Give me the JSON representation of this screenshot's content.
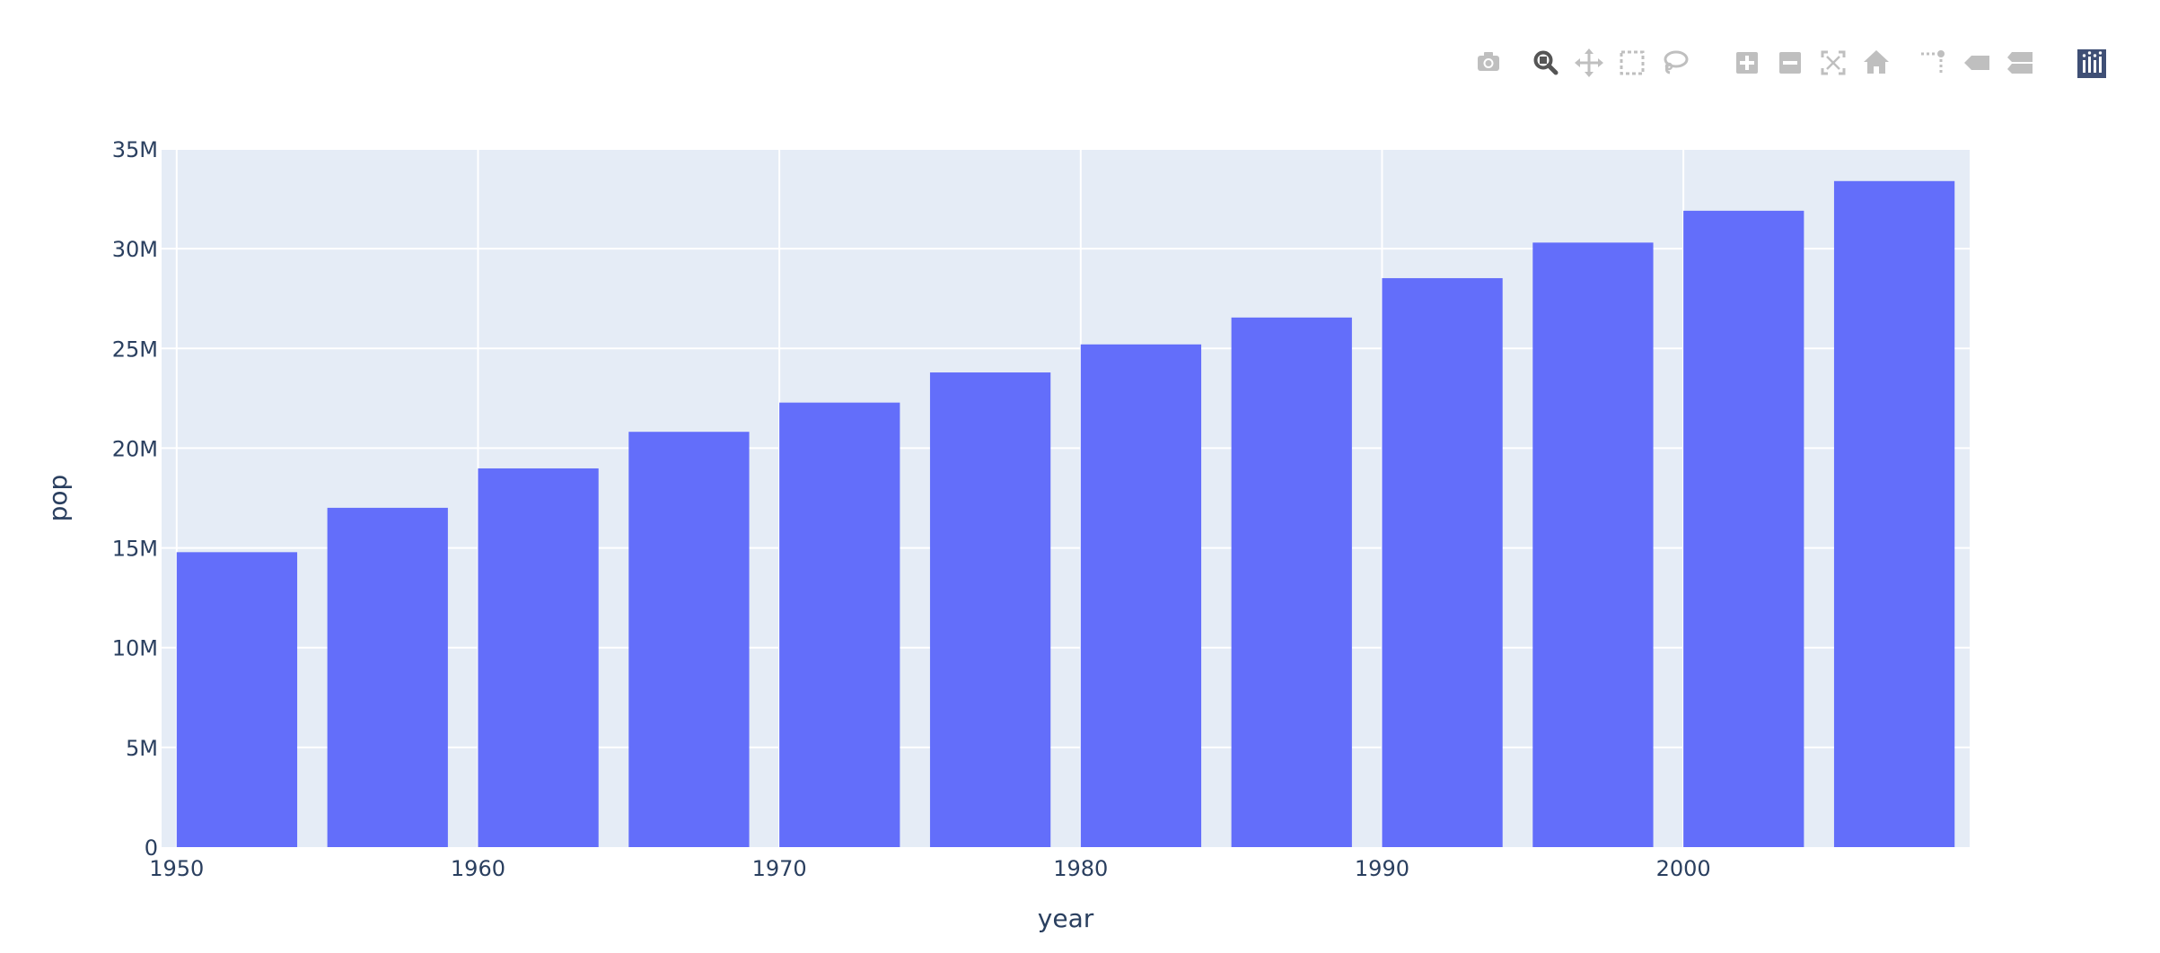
{
  "modebar": {
    "buttons": [
      {
        "name": "camera-icon",
        "title": "Download plot as a png",
        "active": false
      },
      {
        "name": "zoom-icon",
        "title": "Zoom",
        "active": true
      },
      {
        "name": "pan-icon",
        "title": "Pan",
        "active": false
      },
      {
        "name": "box-select-icon",
        "title": "Box Select",
        "active": false
      },
      {
        "name": "lasso-select-icon",
        "title": "Lasso Select",
        "active": false
      },
      {
        "name": "zoom-in-icon",
        "title": "Zoom in",
        "active": false
      },
      {
        "name": "zoom-out-icon",
        "title": "Zoom out",
        "active": false
      },
      {
        "name": "autoscale-icon",
        "title": "Autoscale",
        "active": false
      },
      {
        "name": "reset-axes-icon",
        "title": "Reset axes",
        "active": false
      },
      {
        "name": "spike-lines-icon",
        "title": "Toggle Spike Lines",
        "active": false
      },
      {
        "name": "hover-closest-icon",
        "title": "Show closest data on hover",
        "active": false
      },
      {
        "name": "hover-compare-icon",
        "title": "Compare data on hover",
        "active": false
      },
      {
        "name": "plotly-logo-icon",
        "title": "Produced with Plotly",
        "active": false
      }
    ]
  },
  "colors": {
    "bar": "#636efa",
    "plot_bg": "#e5ecf6",
    "grid": "#ffffff",
    "text": "#2a3f5f",
    "modebar_icon": "#bfbfbf",
    "modebar_active": "#555555",
    "plotly_logo_bg": "#3f4f75"
  },
  "chart_data": {
    "type": "bar",
    "x": [
      1952,
      1957,
      1962,
      1967,
      1972,
      1977,
      1982,
      1987,
      1992,
      1997,
      2002,
      2007
    ],
    "values": [
      14785584,
      17010154,
      18985849,
      20819767,
      22284500,
      23796400,
      25201900,
      26549700,
      28523502,
      30305843,
      31902268,
      33390141
    ],
    "xlabel": "year",
    "ylabel": "pop",
    "xlim": [
      1949.5,
      2009.5
    ],
    "ylim": [
      0,
      35000000
    ],
    "x_ticks": [
      1950,
      1960,
      1970,
      1980,
      1990,
      2000
    ],
    "x_tick_labels": [
      "1950",
      "1960",
      "1970",
      "1980",
      "1990",
      "2000"
    ],
    "y_ticks": [
      0,
      5000000,
      10000000,
      15000000,
      20000000,
      25000000,
      30000000,
      35000000
    ],
    "y_tick_labels": [
      "0",
      "5M",
      "10M",
      "15M",
      "20M",
      "25M",
      "30M",
      "35M"
    ],
    "grid": true,
    "legend": "none"
  }
}
